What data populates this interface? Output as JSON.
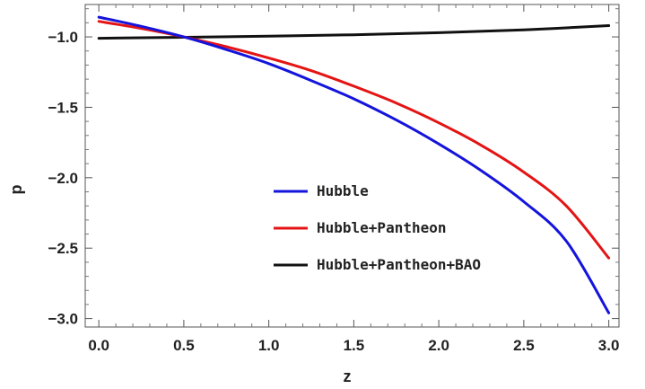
{
  "chart_data": {
    "type": "line",
    "xlabel": "z",
    "ylabel": "p",
    "xlim": [
      -0.08,
      3.06
    ],
    "ylim": [
      -3.06,
      -0.77
    ],
    "xticks": [
      0.0,
      0.5,
      1.0,
      1.5,
      2.0,
      2.5,
      3.0
    ],
    "xtick_labels": [
      "0.0",
      "0.5",
      "1.0",
      "1.5",
      "2.0",
      "2.5",
      "3.0"
    ],
    "yticks": [
      -3.0,
      -2.5,
      -2.0,
      -1.5,
      -1.0
    ],
    "ytick_labels": [
      "−3.0",
      "−2.5",
      "−2.0",
      "−1.5",
      "−1.0"
    ],
    "grid": false,
    "legend_position": "center-right",
    "series": [
      {
        "name": "Hubble",
        "color": "#1414dc",
        "x": [
          0.0,
          0.25,
          0.5,
          0.75,
          1.0,
          1.25,
          1.5,
          1.75,
          2.0,
          2.25,
          2.5,
          2.75,
          3.0
        ],
        "y": [
          -0.86,
          -0.925,
          -1.0,
          -1.09,
          -1.19,
          -1.31,
          -1.44,
          -1.59,
          -1.76,
          -1.95,
          -2.17,
          -2.45,
          -2.96
        ]
      },
      {
        "name": "Hubble+Pantheon",
        "color": "#e41414",
        "x": [
          0.0,
          0.25,
          0.5,
          0.75,
          1.0,
          1.25,
          1.5,
          1.75,
          2.0,
          2.25,
          2.5,
          2.75,
          3.0
        ],
        "y": [
          -0.89,
          -0.94,
          -1.0,
          -1.07,
          -1.15,
          -1.24,
          -1.35,
          -1.47,
          -1.61,
          -1.77,
          -1.96,
          -2.2,
          -2.57
        ]
      },
      {
        "name": "Hubble+Pantheon+BAO",
        "color": "#111111",
        "x": [
          0.0,
          0.5,
          1.0,
          1.5,
          2.0,
          2.5,
          3.0
        ],
        "y": [
          -1.01,
          -1.003,
          -0.995,
          -0.985,
          -0.97,
          -0.95,
          -0.92
        ]
      }
    ]
  }
}
